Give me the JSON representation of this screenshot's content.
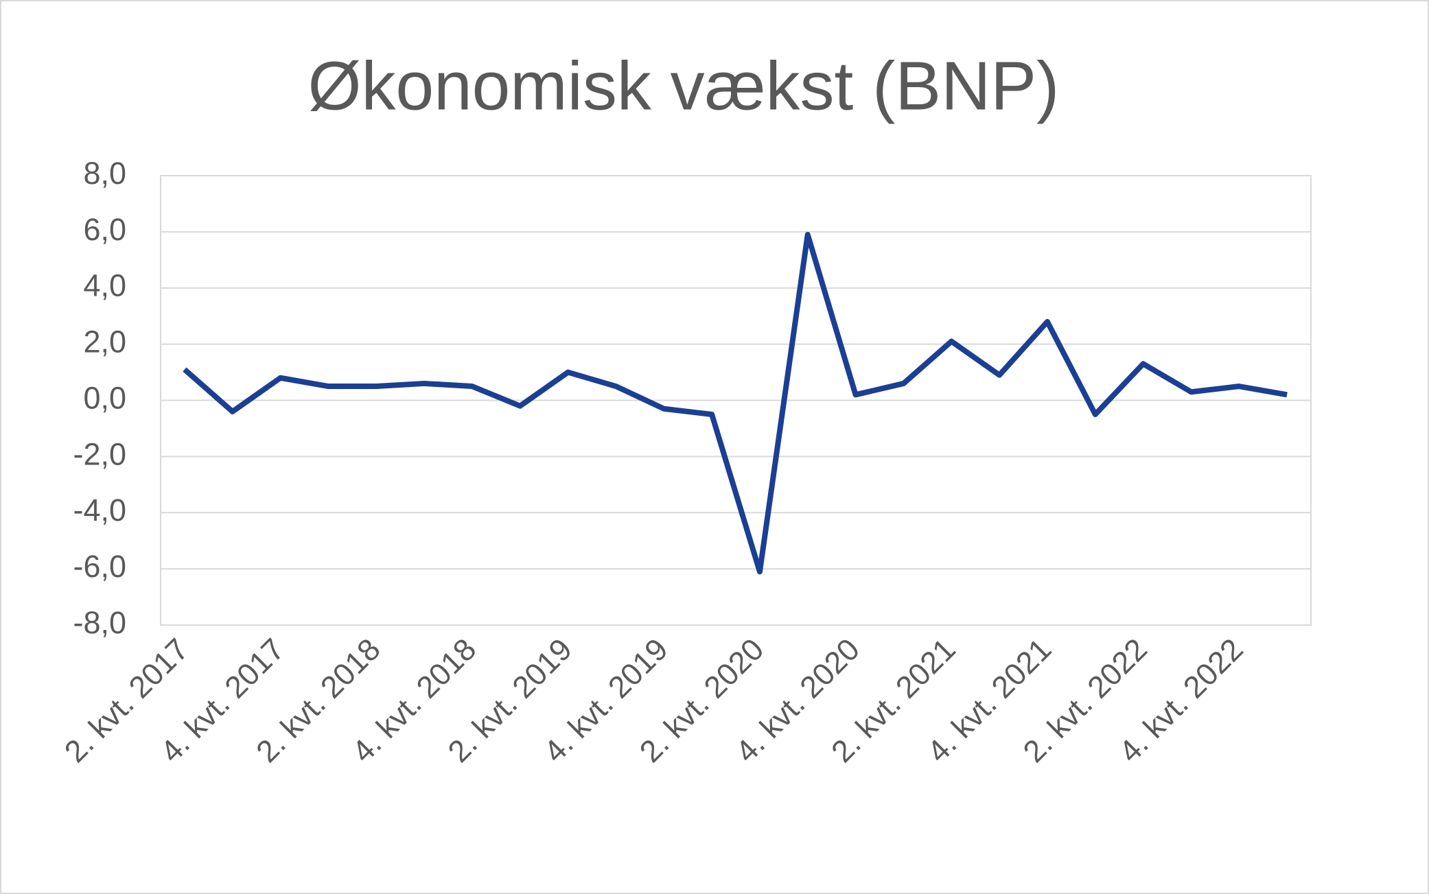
{
  "chart_data": {
    "type": "line",
    "title": "Økonomisk vækst (BNP)",
    "categories": [
      "2. kvt. 2017",
      null,
      "4. kvt. 2017",
      null,
      "2. kvt. 2018",
      null,
      "4. kvt. 2018",
      null,
      "2. kvt. 2019",
      null,
      "4. kvt. 2019",
      null,
      "2. kvt. 2020",
      null,
      "4. kvt. 2020",
      null,
      "2. kvt. 2021",
      null,
      "4. kvt. 2021",
      null,
      "2. kvt. 2022",
      null,
      "4. kvt. 2022",
      null
    ],
    "series": [
      {
        "name": "BNP",
        "color": "#1a3f94",
        "values": [
          1.1,
          -0.4,
          0.8,
          0.5,
          0.5,
          0.6,
          0.5,
          -0.2,
          1.0,
          0.5,
          -0.3,
          -0.5,
          -6.1,
          5.9,
          0.2,
          0.6,
          2.1,
          0.9,
          2.8,
          -0.5,
          1.3,
          0.3,
          0.5,
          0.2
        ]
      }
    ],
    "ylim": [
      -8,
      8
    ],
    "yticks": [
      {
        "value": -8,
        "label": "-8,0"
      },
      {
        "value": -6,
        "label": "-6,0"
      },
      {
        "value": -4,
        "label": "-4,0"
      },
      {
        "value": -2,
        "label": "-2,0"
      },
      {
        "value": 0,
        "label": "0,0"
      },
      {
        "value": 2,
        "label": "2,0"
      },
      {
        "value": 4,
        "label": "4,0"
      },
      {
        "value": 6,
        "label": "6,0"
      },
      {
        "value": 8,
        "label": "8,0"
      }
    ],
    "grid": true
  }
}
